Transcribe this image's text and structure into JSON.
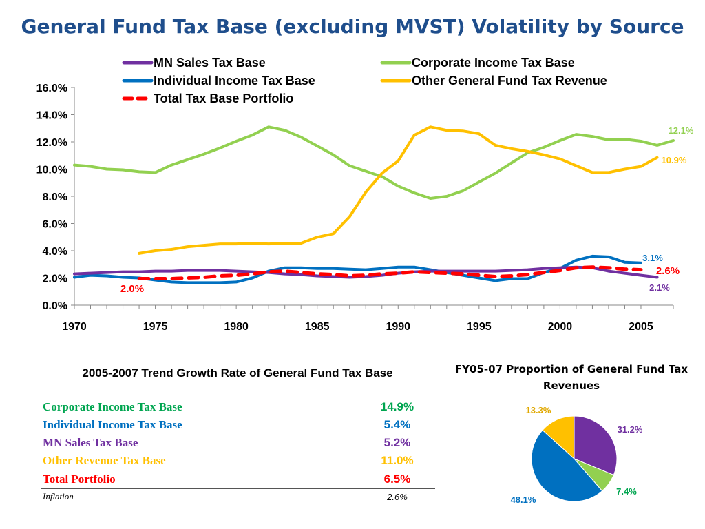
{
  "chart_data": [
    {
      "type": "line",
      "title": "General Fund Tax Base (excluding MVST) Volatility by Source",
      "xlim": [
        1970,
        2007
      ],
      "ylim": [
        0,
        16
      ],
      "x_ticks": [
        "1970",
        "1975",
        "1980",
        "1985",
        "1990",
        "1995",
        "2000",
        "2005"
      ],
      "y_ticks": [
        "0.0%",
        "2.0%",
        "4.0%",
        "6.0%",
        "8.0%",
        "10.0%",
        "12.0%",
        "14.0%",
        "16.0%"
      ],
      "grid": false,
      "legend_position": "top",
      "series": [
        {
          "name": "MN Sales Tax Base",
          "color": "#7030a0",
          "dashed": false,
          "x": [
            1970,
            1971,
            1972,
            1973,
            1974,
            1975,
            1976,
            1977,
            1978,
            1979,
            1980,
            1981,
            1982,
            1983,
            1984,
            1985,
            1986,
            1987,
            1988,
            1989,
            1990,
            1991,
            1992,
            1993,
            1994,
            1995,
            1996,
            1997,
            1998,
            1999,
            2000,
            2001,
            2002,
            2003,
            2004,
            2005,
            2006
          ],
          "values": [
            2.3,
            2.35,
            2.4,
            2.45,
            2.45,
            2.5,
            2.5,
            2.55,
            2.55,
            2.55,
            2.5,
            2.45,
            2.4,
            2.3,
            2.25,
            2.15,
            2.1,
            2.05,
            2.1,
            2.2,
            2.35,
            2.45,
            2.5,
            2.5,
            2.5,
            2.5,
            2.5,
            2.55,
            2.6,
            2.7,
            2.75,
            2.8,
            2.75,
            2.5,
            2.35,
            2.2,
            2.05
          ],
          "end_label": "2.1%"
        },
        {
          "name": "Individual Income Tax Base",
          "color": "#0070c0",
          "dashed": false,
          "x": [
            1970,
            1971,
            1972,
            1973,
            1974,
            1975,
            1976,
            1977,
            1978,
            1979,
            1980,
            1981,
            1982,
            1983,
            1984,
            1985,
            1986,
            1987,
            1988,
            1989,
            1990,
            1991,
            1992,
            1993,
            1994,
            1995,
            1996,
            1997,
            1998,
            1999,
            2000,
            2001,
            2002,
            2003,
            2004,
            2005
          ],
          "values": [
            2.05,
            2.2,
            2.15,
            2.05,
            2.0,
            1.85,
            1.7,
            1.65,
            1.65,
            1.65,
            1.7,
            2.0,
            2.5,
            2.75,
            2.75,
            2.7,
            2.7,
            2.65,
            2.6,
            2.7,
            2.8,
            2.8,
            2.6,
            2.4,
            2.2,
            2.0,
            1.8,
            1.95,
            1.95,
            2.4,
            2.7,
            3.3,
            3.6,
            3.55,
            3.15,
            3.1
          ],
          "end_label": "3.1%"
        },
        {
          "name": "Corporate Income Tax Base",
          "color": "#92d050",
          "dashed": false,
          "x": [
            1970,
            1971,
            1972,
            1973,
            1974,
            1975,
            1976,
            1977,
            1978,
            1979,
            1980,
            1981,
            1982,
            1983,
            1984,
            1985,
            1986,
            1987,
            1988,
            1989,
            1990,
            1991,
            1992,
            1993,
            1994,
            1995,
            1996,
            1997,
            1998,
            1999,
            2000,
            2001,
            2002,
            2003,
            2004,
            2005,
            2006,
            2007
          ],
          "values": [
            10.3,
            10.2,
            10.0,
            9.95,
            9.8,
            9.75,
            10.3,
            10.7,
            11.1,
            11.55,
            12.05,
            12.5,
            13.1,
            12.85,
            12.35,
            11.7,
            11.05,
            10.25,
            9.85,
            9.45,
            8.75,
            8.25,
            7.85,
            8.0,
            8.4,
            9.05,
            9.7,
            10.45,
            11.2,
            11.6,
            12.1,
            12.55,
            12.4,
            12.15,
            12.2,
            12.05,
            11.75,
            12.1
          ],
          "end_label": "12.1%"
        },
        {
          "name": "Other General Fund Tax Revenue",
          "color": "#ffc000",
          "dashed": false,
          "x": [
            1974,
            1975,
            1976,
            1977,
            1978,
            1979,
            1980,
            1981,
            1982,
            1983,
            1984,
            1985,
            1986,
            1987,
            1988,
            1989,
            1990,
            1991,
            1992,
            1993,
            1994,
            1995,
            1996,
            1997,
            1998,
            1999,
            2000,
            2001,
            2002,
            2003,
            2004,
            2005,
            2006
          ],
          "values": [
            3.8,
            4.0,
            4.1,
            4.3,
            4.4,
            4.5,
            4.5,
            4.55,
            4.5,
            4.55,
            4.55,
            5.0,
            5.25,
            6.5,
            8.3,
            9.7,
            10.6,
            12.5,
            13.1,
            12.85,
            12.8,
            12.6,
            11.75,
            11.5,
            11.3,
            11.05,
            10.75,
            10.25,
            9.75,
            9.75,
            10.0,
            10.2,
            10.85
          ],
          "end_label": "10.9%"
        },
        {
          "name": "Total Tax Base Portfolio",
          "color": "#ff0000",
          "dashed": true,
          "x": [
            1974,
            1975,
            1976,
            1977,
            1978,
            1979,
            1980,
            1981,
            1982,
            1983,
            1984,
            1985,
            1986,
            1987,
            1988,
            1989,
            1990,
            1991,
            1992,
            1993,
            1994,
            1995,
            1996,
            1997,
            1998,
            1999,
            2000,
            2001,
            2002,
            2003,
            2004,
            2005
          ],
          "values": [
            1.95,
            1.95,
            1.95,
            2.0,
            2.05,
            2.15,
            2.2,
            2.3,
            2.45,
            2.5,
            2.4,
            2.3,
            2.25,
            2.15,
            2.2,
            2.3,
            2.35,
            2.45,
            2.4,
            2.35,
            2.3,
            2.2,
            2.1,
            2.15,
            2.25,
            2.4,
            2.55,
            2.75,
            2.8,
            2.75,
            2.65,
            2.6
          ],
          "end_label": "2.6%",
          "start_label": "2.0%"
        }
      ]
    },
    {
      "type": "pie",
      "title": "FY05-07 Proportion of General Fund Tax Revenues",
      "slices": [
        {
          "label": "31.2%",
          "value": 31.2,
          "color": "#7030a0"
        },
        {
          "label": "7.4%",
          "value": 7.4,
          "color": "#92d050"
        },
        {
          "label": "48.1%",
          "value": 48.1,
          "color": "#0070c0"
        },
        {
          "label": "13.3%",
          "value": 13.3,
          "color": "#ffc000"
        }
      ]
    },
    {
      "type": "table",
      "title": "2005-2007 Trend Growth Rate of General Fund Tax Base",
      "rows": [
        {
          "name": "Corporate Income Tax Base",
          "value": "14.9%",
          "color": "#00a550"
        },
        {
          "name": "Individual Income Tax Base",
          "value": "5.4%",
          "color": "#0070c0"
        },
        {
          "name": "MN Sales Tax Base",
          "value": "5.2%",
          "color": "#7030a0"
        },
        {
          "name": "Other Revenue Tax Base",
          "value": "11.0%",
          "color": "#ffc000"
        },
        {
          "name": "Total Portfolio",
          "value": "6.5%",
          "color": "#ff0000"
        },
        {
          "name": "Inflation",
          "value": "2.6%",
          "color": "#000000"
        }
      ]
    }
  ]
}
